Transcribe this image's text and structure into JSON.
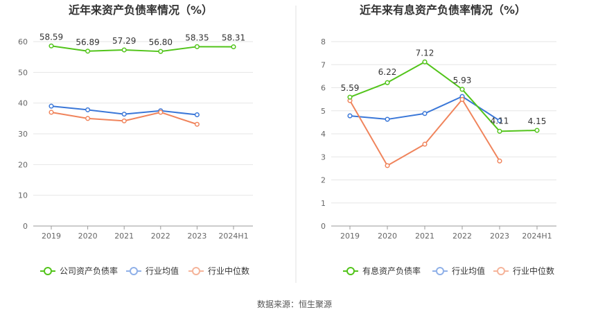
{
  "source_label": "数据来源：恒生聚源",
  "colors": {
    "green": "#52c41a",
    "blue": "#3a77d8",
    "orange": "#f0845c",
    "legend_blue": "#8fb0e8",
    "legend_orange": "#f5b49a",
    "axis": "#666666",
    "grid": "#e6e6e6",
    "divider": "#e0e0e0"
  },
  "chart_data": [
    {
      "type": "line",
      "title": "近年来资产负债率情况（%）",
      "categories": [
        "2019",
        "2020",
        "2021",
        "2022",
        "2023",
        "2024H1"
      ],
      "yticks": [
        "0",
        "10",
        "20",
        "30",
        "40",
        "50",
        "60"
      ],
      "ylim": [
        0,
        60
      ],
      "grid": true,
      "legend_position": "bottom",
      "series": [
        {
          "name": "公司资产负债率",
          "values": [
            58.59,
            56.89,
            57.29,
            56.8,
            58.35,
            58.31
          ],
          "labels": [
            "58.59",
            "56.89",
            "57.29",
            "56.80",
            "58.35",
            "58.31"
          ]
        },
        {
          "name": "行业均值",
          "values": [
            39.0,
            37.8,
            36.4,
            37.5,
            36.2,
            null
          ]
        },
        {
          "name": "行业中位数",
          "values": [
            37.0,
            35.0,
            34.2,
            37.0,
            33.1,
            null
          ]
        }
      ]
    },
    {
      "type": "line",
      "title": "近年来有息资产负债率情况（%）",
      "categories": [
        "2019",
        "2020",
        "2021",
        "2022",
        "2023",
        "2024H1"
      ],
      "yticks": [
        "0",
        "1",
        "2",
        "3",
        "4",
        "5",
        "6",
        "7",
        "8"
      ],
      "ylim": [
        0,
        8
      ],
      "grid": true,
      "legend_position": "bottom",
      "series": [
        {
          "name": "有息资产负债率",
          "values": [
            5.59,
            6.22,
            7.12,
            5.93,
            4.11,
            4.15
          ],
          "labels": [
            "5.59",
            "6.22",
            "7.12",
            "5.93",
            "4.11",
            "4.15"
          ]
        },
        {
          "name": "行业均值",
          "values": [
            4.78,
            4.63,
            4.88,
            5.62,
            4.57,
            null
          ]
        },
        {
          "name": "行业中位数",
          "values": [
            5.44,
            2.62,
            3.55,
            5.49,
            2.82,
            null
          ]
        }
      ]
    }
  ]
}
